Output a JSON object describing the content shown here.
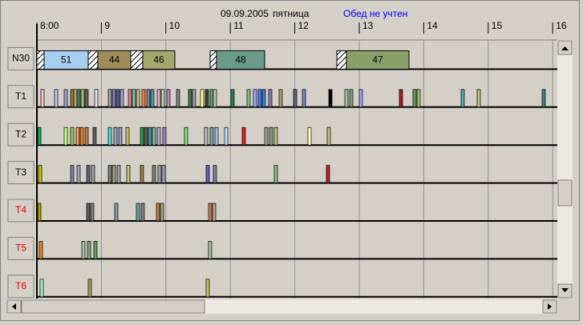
{
  "header": {
    "date": "09.09.2005",
    "weekday": "пятница",
    "note": "Обед не учтен"
  },
  "timeline": {
    "hours": [
      "8:00",
      "9",
      "10",
      "11",
      "12",
      "13",
      "14",
      "15",
      "16"
    ]
  },
  "rows": [
    {
      "label": "N30"
    },
    {
      "label": "T1"
    },
    {
      "label": "T2"
    },
    {
      "label": "T3"
    },
    {
      "label": "T4"
    },
    {
      "label": "T5"
    },
    {
      "label": "T6"
    }
  ],
  "blocks": [
    {
      "label": "51"
    },
    {
      "label": "44"
    },
    {
      "label": "46"
    },
    {
      "label": "48"
    },
    {
      "label": "47"
    }
  ]
}
